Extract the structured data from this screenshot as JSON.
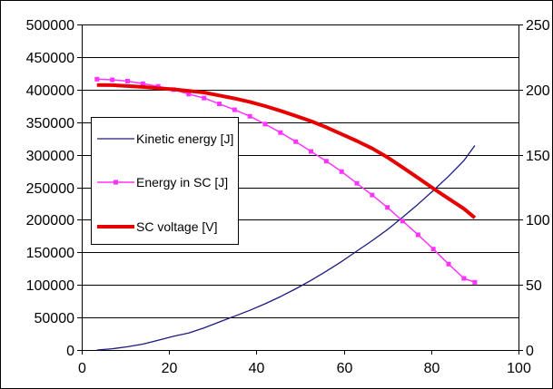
{
  "chart_data": {
    "type": "line",
    "title": "",
    "xlabel": "",
    "ylabel": "",
    "y2label": "",
    "xlim": [
      0,
      100
    ],
    "ylim": [
      0,
      500000
    ],
    "y2lim": [
      0,
      250
    ],
    "x_ticks": [
      0,
      20,
      40,
      60,
      80,
      100
    ],
    "y_ticks": [
      0,
      50000,
      100000,
      150000,
      200000,
      250000,
      300000,
      350000,
      400000,
      450000,
      500000
    ],
    "y2_ticks": [
      0,
      50,
      100,
      150,
      200,
      250
    ],
    "grid": "horizontal",
    "legend_position": "left-middle",
    "series": [
      {
        "name": "Kinetic energy [J]",
        "axis": "left",
        "color": "#1a1a80",
        "marker": "none",
        "x": [
          3.5,
          7,
          10.5,
          14,
          17.5,
          21,
          24.5,
          28,
          31.5,
          35,
          38.5,
          42,
          45.5,
          49,
          52.5,
          56,
          59.5,
          63,
          66.5,
          70,
          73.5,
          77,
          80.5,
          84,
          87.5,
          90
        ],
        "y": [
          0,
          2000,
          5000,
          9000,
          15000,
          21000,
          26000,
          34000,
          43000,
          52000,
          61000,
          71000,
          82000,
          94000,
          107000,
          121000,
          136000,
          152000,
          168000,
          185000,
          204000,
          224000,
          245000,
          267000,
          291000,
          314000
        ]
      },
      {
        "name": "Energy in SC [J]",
        "axis": "left",
        "color": "#ff33ff",
        "marker": "square",
        "x": [
          3.5,
          7,
          10.5,
          14,
          17.5,
          21,
          24.5,
          28,
          31.5,
          35,
          38.5,
          42,
          45.5,
          49,
          52.5,
          56,
          59.5,
          63,
          66.5,
          70,
          73.5,
          77,
          80.5,
          84,
          87.5,
          90
        ],
        "y": [
          416000,
          415000,
          413000,
          409000,
          405000,
          400000,
          393000,
          387000,
          378000,
          369000,
          359000,
          347000,
          334000,
          320000,
          305000,
          290000,
          274000,
          256000,
          238000,
          219000,
          198000,
          177000,
          155000,
          132000,
          110000,
          104000
        ]
      },
      {
        "name": "SC voltage [V]",
        "axis": "right",
        "color": "#e60000",
        "marker": "none",
        "x": [
          3.5,
          7,
          10.5,
          14,
          17.5,
          21,
          24.5,
          28,
          31.5,
          35,
          38.5,
          42,
          45.5,
          49,
          52.5,
          56,
          59.5,
          63,
          66.5,
          70,
          73.5,
          77,
          80.5,
          84,
          87.5,
          90
        ],
        "y": [
          203.5,
          203.4,
          202.7,
          202,
          201,
          200.2,
          199,
          197.8,
          195.5,
          193.2,
          190.5,
          187.3,
          183.7,
          179.8,
          175.8,
          171,
          165.8,
          160.5,
          154.8,
          148,
          140.2,
          132.2,
          124,
          116.2,
          108.5,
          101.5
        ]
      }
    ]
  }
}
